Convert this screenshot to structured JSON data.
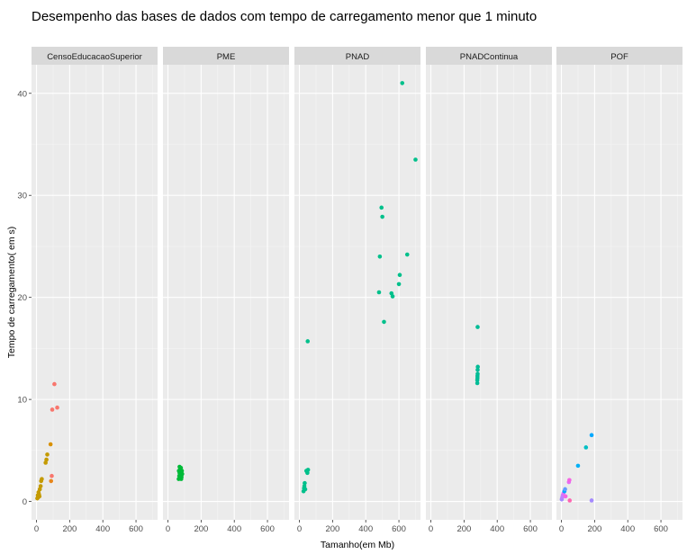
{
  "chart_data": {
    "type": "scatter",
    "title": "Desempenho das bases de dados com tempo de carregamento menor que 1 minuto",
    "xlabel": "Tamanho(em Mb)",
    "ylabel": "Tempo de carregamento( em s)",
    "xlim": [
      -30,
      730
    ],
    "ylim": [
      -1.8,
      42.8
    ],
    "x_ticks": [
      0,
      200,
      400,
      600
    ],
    "y_ticks": [
      0,
      10,
      20,
      30,
      40
    ],
    "grid": true,
    "legend": "none",
    "facets": [
      {
        "name": "CensoEducacaoSuperior",
        "points": [
          {
            "x": 5,
            "y": 0.3,
            "color": "#C49A00"
          },
          {
            "x": 8,
            "y": 0.6,
            "color": "#C49A00"
          },
          {
            "x": 10,
            "y": 0.4,
            "color": "#C49A00"
          },
          {
            "x": 12,
            "y": 0.9,
            "color": "#C49A00"
          },
          {
            "x": 15,
            "y": 0.7,
            "color": "#C49A00"
          },
          {
            "x": 18,
            "y": 0.5,
            "color": "#C49A00"
          },
          {
            "x": 20,
            "y": 1.2,
            "color": "#C49A00"
          },
          {
            "x": 25,
            "y": 1.5,
            "color": "#C49A00"
          },
          {
            "x": 28,
            "y": 2.0,
            "color": "#C49A00"
          },
          {
            "x": 32,
            "y": 2.2,
            "color": "#C49A00"
          },
          {
            "x": 55,
            "y": 3.8,
            "color": "#C49A00"
          },
          {
            "x": 60,
            "y": 4.1,
            "color": "#C49A00"
          },
          {
            "x": 65,
            "y": 4.6,
            "color": "#C49A00"
          },
          {
            "x": 85,
            "y": 5.6,
            "color": "#D89000"
          },
          {
            "x": 88,
            "y": 2.0,
            "color": "#E7861B"
          },
          {
            "x": 92,
            "y": 2.5,
            "color": "#F8766D"
          },
          {
            "x": 95,
            "y": 9.0,
            "color": "#F8766D"
          },
          {
            "x": 108,
            "y": 11.5,
            "color": "#F8766D"
          },
          {
            "x": 125,
            "y": 9.2,
            "color": "#F8766D"
          }
        ]
      },
      {
        "name": "PME",
        "points": [
          {
            "x": 65,
            "y": 2.2,
            "color": "#00BA38"
          },
          {
            "x": 68,
            "y": 2.5,
            "color": "#00BA38"
          },
          {
            "x": 70,
            "y": 2.8,
            "color": "#00BA38"
          },
          {
            "x": 72,
            "y": 3.1,
            "color": "#00BA38"
          },
          {
            "x": 74,
            "y": 2.3,
            "color": "#00BA38"
          },
          {
            "x": 76,
            "y": 2.6,
            "color": "#00BA38"
          },
          {
            "x": 78,
            "y": 3.3,
            "color": "#00BA38"
          },
          {
            "x": 80,
            "y": 2.9,
            "color": "#00BA38"
          },
          {
            "x": 82,
            "y": 2.4,
            "color": "#00BA38"
          },
          {
            "x": 84,
            "y": 3.0,
            "color": "#00BA38"
          },
          {
            "x": 70,
            "y": 3.4,
            "color": "#00BA38"
          },
          {
            "x": 86,
            "y": 2.7,
            "color": "#00BA38"
          },
          {
            "x": 66,
            "y": 3.0,
            "color": "#00BA38"
          },
          {
            "x": 80,
            "y": 2.2,
            "color": "#00BA38"
          }
        ]
      },
      {
        "name": "PNAD",
        "points": [
          {
            "x": 25,
            "y": 1.0,
            "color": "#00C08B"
          },
          {
            "x": 28,
            "y": 1.3,
            "color": "#00C08B"
          },
          {
            "x": 30,
            "y": 1.5,
            "color": "#00C08B"
          },
          {
            "x": 32,
            "y": 1.8,
            "color": "#00C08B"
          },
          {
            "x": 35,
            "y": 1.2,
            "color": "#00C08B"
          },
          {
            "x": 42,
            "y": 3.0,
            "color": "#00C08B"
          },
          {
            "x": 48,
            "y": 2.8,
            "color": "#00C08B"
          },
          {
            "x": 52,
            "y": 3.1,
            "color": "#00C08B"
          },
          {
            "x": 50,
            "y": 15.7,
            "color": "#00C08B"
          },
          {
            "x": 480,
            "y": 20.5,
            "color": "#00C08B"
          },
          {
            "x": 485,
            "y": 24.0,
            "color": "#00C08B"
          },
          {
            "x": 495,
            "y": 28.8,
            "color": "#00C08B"
          },
          {
            "x": 500,
            "y": 27.9,
            "color": "#00C08B"
          },
          {
            "x": 510,
            "y": 17.6,
            "color": "#00C08B"
          },
          {
            "x": 555,
            "y": 20.4,
            "color": "#00C08B"
          },
          {
            "x": 562,
            "y": 20.1,
            "color": "#00C08B"
          },
          {
            "x": 600,
            "y": 21.3,
            "color": "#00C08B"
          },
          {
            "x": 605,
            "y": 22.2,
            "color": "#00C08B"
          },
          {
            "x": 620,
            "y": 41.0,
            "color": "#00C08B"
          },
          {
            "x": 650,
            "y": 24.2,
            "color": "#00C08B"
          },
          {
            "x": 700,
            "y": 33.5,
            "color": "#00C08B"
          }
        ]
      },
      {
        "name": "PNADContinua",
        "points": [
          {
            "x": 280,
            "y": 11.6,
            "color": "#00BC96"
          },
          {
            "x": 280,
            "y": 11.9,
            "color": "#00BC96"
          },
          {
            "x": 281,
            "y": 12.1,
            "color": "#00BC96"
          },
          {
            "x": 281,
            "y": 12.3,
            "color": "#00BC96"
          },
          {
            "x": 282,
            "y": 12.5,
            "color": "#00BC96"
          },
          {
            "x": 282,
            "y": 12.9,
            "color": "#00BC96"
          },
          {
            "x": 283,
            "y": 13.2,
            "color": "#00BC96"
          },
          {
            "x": 282,
            "y": 17.1,
            "color": "#00BC96"
          }
        ]
      },
      {
        "name": "POF",
        "points": [
          {
            "x": 2,
            "y": 0.2,
            "color": "#A58AFF"
          },
          {
            "x": 5,
            "y": 0.4,
            "color": "#B983FF"
          },
          {
            "x": 8,
            "y": 0.6,
            "color": "#C77CFF"
          },
          {
            "x": 12,
            "y": 0.8,
            "color": "#DF70F8"
          },
          {
            "x": 18,
            "y": 1.0,
            "color": "#00A9FF"
          },
          {
            "x": 22,
            "y": 1.2,
            "color": "#619CFF"
          },
          {
            "x": 25,
            "y": 0.5,
            "color": "#F564E3"
          },
          {
            "x": 45,
            "y": 1.9,
            "color": "#E76BF3"
          },
          {
            "x": 48,
            "y": 2.1,
            "color": "#F564E3"
          },
          {
            "x": 50,
            "y": 0.1,
            "color": "#FF64B0"
          },
          {
            "x": 100,
            "y": 3.5,
            "color": "#00B0F6"
          },
          {
            "x": 148,
            "y": 5.3,
            "color": "#00BFC4"
          },
          {
            "x": 182,
            "y": 6.5,
            "color": "#00A9FF"
          },
          {
            "x": 182,
            "y": 0.1,
            "color": "#A58AFF"
          }
        ]
      }
    ]
  }
}
